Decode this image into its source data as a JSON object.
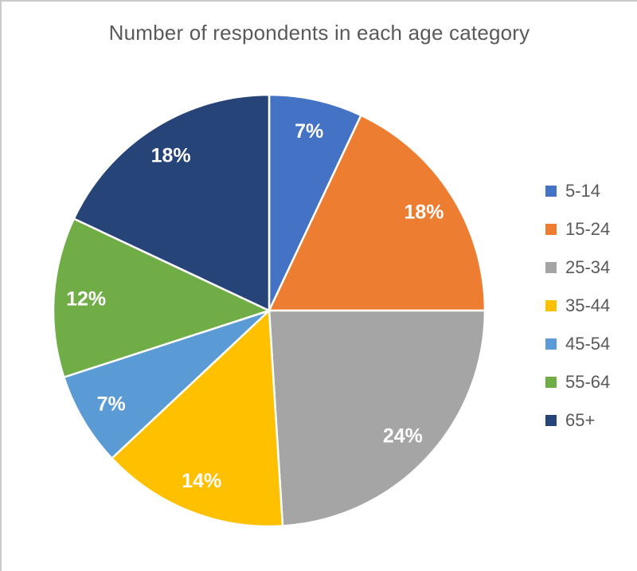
{
  "chart_data": {
    "type": "pie",
    "title": "Number of respondents in each age category",
    "categories": [
      "5-14",
      "15-24",
      "25-34",
      "35-44",
      "45-54",
      "55-64",
      "65+"
    ],
    "values": [
      7,
      18,
      24,
      14,
      7,
      12,
      18
    ],
    "slice_labels": [
      "7%",
      "18%",
      "24%",
      "14%",
      "7%",
      "12%",
      "18%"
    ],
    "colors": [
      "#4472C4",
      "#ED7D31",
      "#A5A5A5",
      "#FFC000",
      "#5B9BD5",
      "#70AD47",
      "#264478"
    ],
    "start_angle_deg": 0,
    "direction": "clockwise",
    "legend_position": "right",
    "label_text_color": "#FFFFFF",
    "title_color": "#595959",
    "legend_text_color": "#595959",
    "slice_separator_color": "#FFFFFF"
  }
}
